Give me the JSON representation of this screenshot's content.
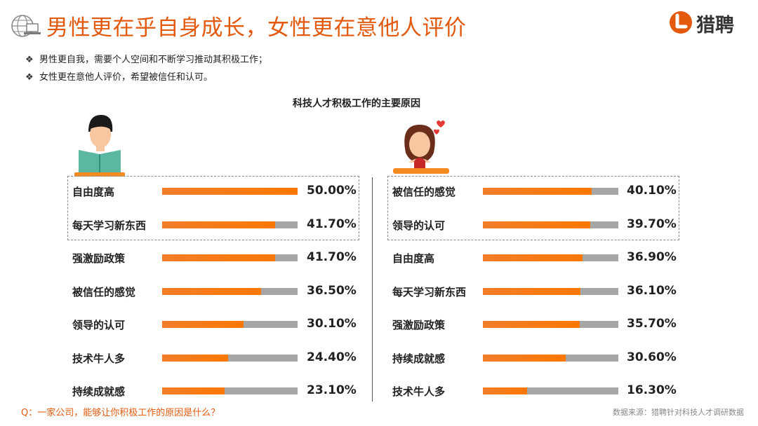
{
  "header": {
    "title": "男性更在乎自身成长，女性更在意他人评价",
    "logo_text": "猎聘",
    "globe_icon": "globe-laptop-icon",
    "brand_color": "#e35a0f"
  },
  "bullets": [
    "男性更自我，需要个人空间和不断学习推动其积极工作；",
    "女性更在意他人评价，希望被信任和认可。"
  ],
  "bullet_symbol": "❖",
  "footer": {
    "question": "Q：一家公司，能够让你积极工作的原因是什么？",
    "source": "数据来源：猎聘针对科技人才调研数据"
  },
  "chart_data": {
    "type": "bar",
    "title": "科技人才积极工作的主要原因",
    "orientation": "horizontal",
    "xlim": [
      0,
      50
    ],
    "colors": {
      "fill": "#fd7800",
      "track": "#a6a6a6"
    },
    "panels": [
      {
        "icon": "man-reading-icon",
        "highlighted_top": 2,
        "categories": [
          "自由度高",
          "每天学习新东西",
          "强激励政策",
          "被信任的感觉",
          "领导的认可",
          "技术牛人多",
          "持续成就感"
        ],
        "values": [
          50.0,
          41.7,
          41.7,
          36.5,
          30.1,
          24.4,
          23.1
        ],
        "value_labels": [
          "50.00%",
          "41.70%",
          "41.70%",
          "36.50%",
          "30.10%",
          "24.40%",
          "23.10%"
        ]
      },
      {
        "icon": "woman-with-hearts-icon",
        "highlighted_top": 2,
        "categories": [
          "被信任的感觉",
          "领导的认可",
          "自由度高",
          "每天学习新东西",
          "强激励政策",
          "持续成就感",
          "技术牛人多"
        ],
        "values": [
          40.1,
          39.7,
          36.9,
          36.1,
          35.7,
          30.6,
          16.3
        ],
        "value_labels": [
          "40.10%",
          "39.70%",
          "36.90%",
          "36.10%",
          "35.70%",
          "30.60%",
          "16.30%"
        ]
      }
    ]
  }
}
